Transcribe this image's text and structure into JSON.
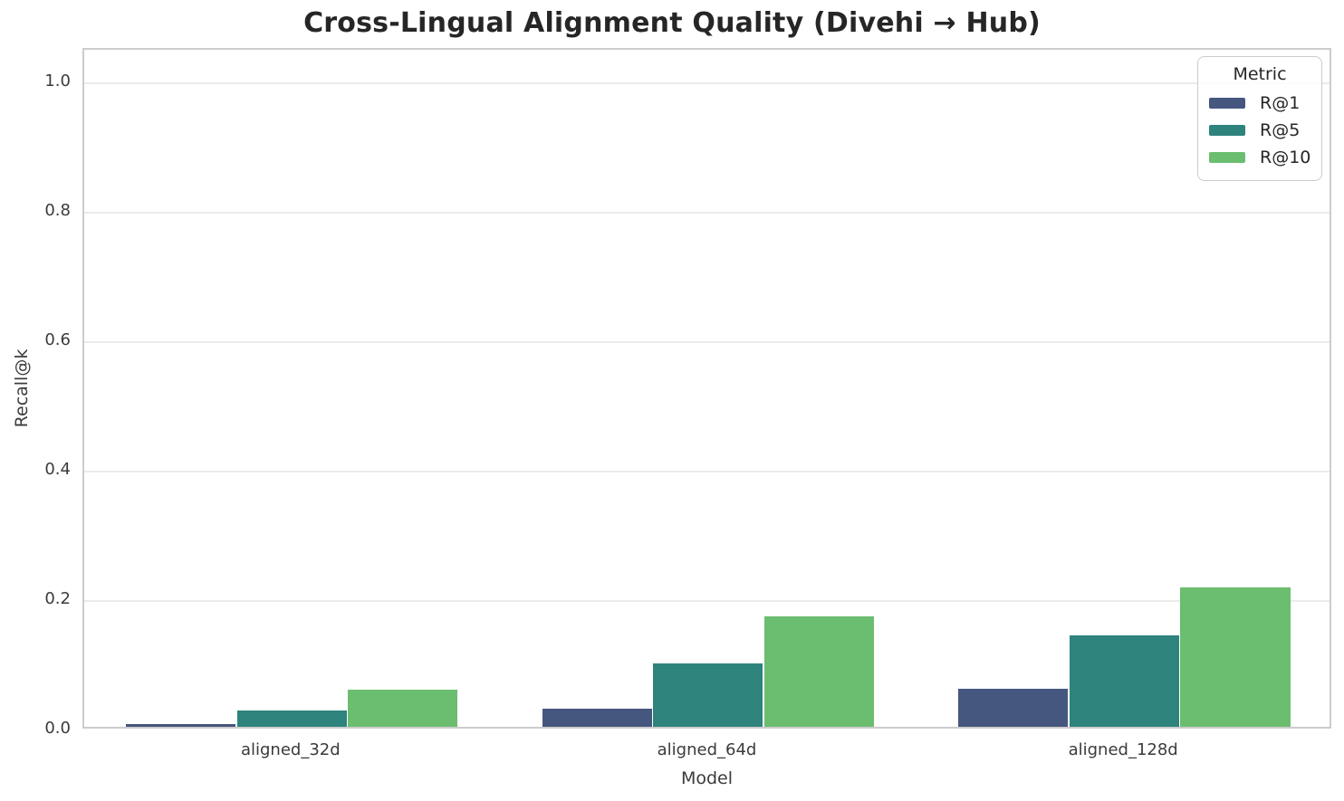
{
  "chart_data": {
    "type": "bar",
    "title": "Cross-Lingual Alignment Quality (Divehi → Hub)",
    "xlabel": "Model",
    "ylabel": "Recall@k",
    "categories": [
      "aligned_32d",
      "aligned_64d",
      "aligned_128d"
    ],
    "series": [
      {
        "name": "R@1",
        "color": "#45577e",
        "values": [
          0.004,
          0.028,
          0.059
        ]
      },
      {
        "name": "R@5",
        "color": "#2e837d",
        "values": [
          0.025,
          0.098,
          0.141
        ]
      },
      {
        "name": "R@10",
        "color": "#6bbd6f",
        "values": [
          0.057,
          0.17,
          0.215
        ]
      }
    ],
    "ylim": [
      0,
      1.052
    ],
    "yticks": [
      0.0,
      0.2,
      0.4,
      0.6,
      0.8,
      1.0
    ],
    "ytick_labels": [
      "0.0",
      "0.2",
      "0.4",
      "0.6",
      "0.8",
      "1.0"
    ],
    "grid": true,
    "legend": {
      "title": "Metric",
      "position": "upper right"
    }
  }
}
